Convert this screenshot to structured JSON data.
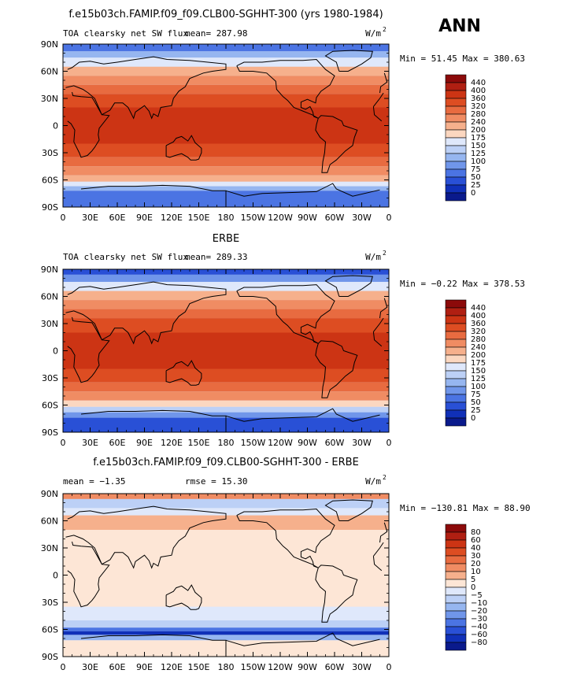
{
  "season": "ANN",
  "chart_data": [
    {
      "type": "heatmap",
      "title": "f.e15b03ch.FAMIP.f09_f09.CLB00-SGHHT-300 (yrs 1980-1984)",
      "subtitle_left": "TOA clearsky net SW flux",
      "mean_text": "mean= 287.98",
      "units_text": "W/m",
      "units_sup": "2",
      "minmax_text": "Min =  51.45 Max = 380.63",
      "x_ticks": [
        "0",
        "30E",
        "60E",
        "90E",
        "120E",
        "150E",
        "180",
        "150W",
        "120W",
        "90W",
        "60W",
        "30W",
        "0"
      ],
      "y_ticks": [
        "90N",
        "60N",
        "30N",
        "0",
        "30S",
        "60S",
        "90S"
      ],
      "colorbar_levels": [
        "440",
        "400",
        "360",
        "320",
        "280",
        "240",
        "200",
        "175",
        "150",
        "125",
        "100",
        "75",
        "50",
        "25",
        "0"
      ],
      "colorbar_colors": [
        "#8c0a0a",
        "#b01f12",
        "#cc3414",
        "#dd4d22",
        "#e86b40",
        "#f08c63",
        "#f6b08c",
        "#fbd7c0",
        "#dfe8fb",
        "#bcd0f6",
        "#96b6f0",
        "#7096ea",
        "#4b74e3",
        "#2950d6",
        "#1030b8",
        "#0a1a8c"
      ],
      "bands": [
        {
          "lat_from": 90,
          "lat_to": 82,
          "level": "50"
        },
        {
          "lat_from": 82,
          "lat_to": 75,
          "level": "100"
        },
        {
          "lat_from": 75,
          "lat_to": 65,
          "level": "150"
        },
        {
          "lat_from": 65,
          "lat_to": 55,
          "level": "200"
        },
        {
          "lat_from": 55,
          "lat_to": 45,
          "level": "240"
        },
        {
          "lat_from": 45,
          "lat_to": 35,
          "level": "280"
        },
        {
          "lat_from": 35,
          "lat_to": 20,
          "level": "320"
        },
        {
          "lat_from": 20,
          "lat_to": -20,
          "level": "360"
        },
        {
          "lat_from": -20,
          "lat_to": -35,
          "level": "320"
        },
        {
          "lat_from": -35,
          "lat_to": -45,
          "level": "280"
        },
        {
          "lat_from": -45,
          "lat_to": -55,
          "level": "240"
        },
        {
          "lat_from": -55,
          "lat_to": -62,
          "level": "200"
        },
        {
          "lat_from": -62,
          "lat_to": -67,
          "level": "150"
        },
        {
          "lat_from": -67,
          "lat_to": -72,
          "level": "100"
        },
        {
          "lat_from": -72,
          "lat_to": -90,
          "level": "50"
        }
      ]
    },
    {
      "type": "heatmap",
      "title": "ERBE",
      "subtitle_left": "TOA clearsky net SW flux",
      "mean_text": "mean= 289.33",
      "units_text": "W/m",
      "units_sup": "2",
      "minmax_text": "Min =  −0.22 Max = 378.53",
      "x_ticks": [
        "0",
        "30E",
        "60E",
        "90E",
        "120E",
        "150E",
        "180",
        "150W",
        "120W",
        "90W",
        "60W",
        "30W",
        "0"
      ],
      "y_ticks": [
        "90N",
        "60N",
        "30N",
        "0",
        "30S",
        "60S",
        "90S"
      ],
      "colorbar_levels": [
        "440",
        "400",
        "360",
        "320",
        "280",
        "240",
        "200",
        "175",
        "150",
        "125",
        "100",
        "75",
        "50",
        "25",
        "0"
      ],
      "colorbar_colors": [
        "#8c0a0a",
        "#b01f12",
        "#cc3414",
        "#dd4d22",
        "#e86b40",
        "#f08c63",
        "#f6b08c",
        "#fbd7c0",
        "#dfe8fb",
        "#bcd0f6",
        "#96b6f0",
        "#7096ea",
        "#4b74e3",
        "#2950d6",
        "#1030b8",
        "#0a1a8c"
      ],
      "bands": [
        {
          "lat_from": 90,
          "lat_to": 84,
          "level": "25"
        },
        {
          "lat_from": 84,
          "lat_to": 76,
          "level": "75"
        },
        {
          "lat_from": 76,
          "lat_to": 66,
          "level": "150"
        },
        {
          "lat_from": 66,
          "lat_to": 56,
          "level": "200"
        },
        {
          "lat_from": 56,
          "lat_to": 46,
          "level": "240"
        },
        {
          "lat_from": 46,
          "lat_to": 36,
          "level": "280"
        },
        {
          "lat_from": 36,
          "lat_to": 20,
          "level": "320"
        },
        {
          "lat_from": 20,
          "lat_to": -20,
          "level": "360"
        },
        {
          "lat_from": -20,
          "lat_to": -35,
          "level": "320"
        },
        {
          "lat_from": -35,
          "lat_to": -45,
          "level": "280"
        },
        {
          "lat_from": -45,
          "lat_to": -55,
          "level": "240"
        },
        {
          "lat_from": -55,
          "lat_to": -62,
          "level": "175"
        },
        {
          "lat_from": -62,
          "lat_to": -68,
          "level": "125"
        },
        {
          "lat_from": -68,
          "lat_to": -74,
          "level": "75"
        },
        {
          "lat_from": -74,
          "lat_to": -90,
          "level": "25"
        }
      ]
    },
    {
      "type": "heatmap",
      "title": "f.e15b03ch.FAMIP.f09_f09.CLB00-SGHHT-300 - ERBE",
      "subtitle_left": "mean =   −1.35",
      "mean_text": "rmse =  15.30",
      "units_text": "W/m",
      "units_sup": "2",
      "minmax_text": "Min = −130.81 Max =  88.90",
      "x_ticks": [
        "0",
        "30E",
        "60E",
        "90E",
        "120E",
        "150E",
        "180",
        "150W",
        "120W",
        "90W",
        "60W",
        "30W",
        "0"
      ],
      "y_ticks": [
        "90N",
        "60N",
        "30N",
        "0",
        "30S",
        "60S",
        "90S"
      ],
      "colorbar_levels": [
        "80",
        "60",
        "40",
        "30",
        "20",
        "10",
        "5",
        "0",
        "−5",
        "−10",
        "−20",
        "−30",
        "−40",
        "−60",
        "−80"
      ],
      "colorbar_colors": [
        "#8c0a0a",
        "#b01f12",
        "#cc3414",
        "#dd4d22",
        "#e86b40",
        "#f08c63",
        "#f6b08c",
        "#fde6d6",
        "#dfe8fb",
        "#bcd0f6",
        "#96b6f0",
        "#7096ea",
        "#4b74e3",
        "#2950d6",
        "#1030b8",
        "#0a1a8c"
      ],
      "bands": [
        {
          "lat_from": 90,
          "lat_to": 84,
          "level": "10"
        },
        {
          "lat_from": 84,
          "lat_to": 74,
          "level": "-10"
        },
        {
          "lat_from": 74,
          "lat_to": 66,
          "level": "-5"
        },
        {
          "lat_from": 66,
          "lat_to": 50,
          "level": "5"
        },
        {
          "lat_from": 50,
          "lat_to": 40,
          "level": "0"
        },
        {
          "lat_from": 40,
          "lat_to": -35,
          "level": "0"
        },
        {
          "lat_from": -35,
          "lat_to": -50,
          "level": "-5"
        },
        {
          "lat_from": -50,
          "lat_to": -58,
          "level": "-10"
        },
        {
          "lat_from": -58,
          "lat_to": -62,
          "level": "-40"
        },
        {
          "lat_from": -62,
          "lat_to": -66,
          "level": "-80"
        },
        {
          "lat_from": -66,
          "lat_to": -72,
          "level": "-20"
        },
        {
          "lat_from": -72,
          "lat_to": -90,
          "level": "0"
        }
      ]
    }
  ]
}
